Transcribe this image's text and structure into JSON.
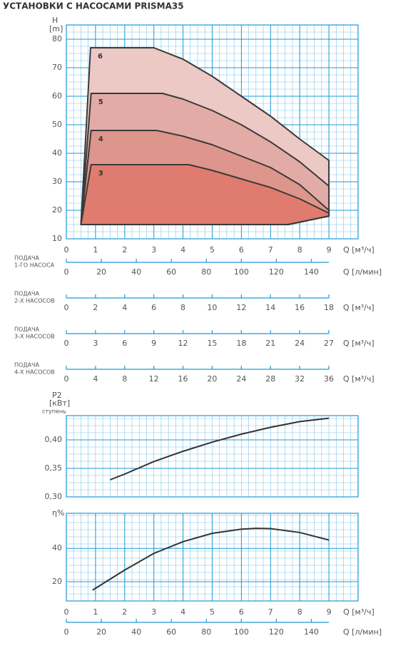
{
  "title": "УСТАНОВКИ С НАСОСАМИ PRISMA35",
  "chart_data": [
    {
      "type": "area",
      "y_label": "H",
      "y_unit": "[m]",
      "x_label": "Q [м³/ч]",
      "xlim": [
        0,
        10
      ],
      "ylim": [
        10,
        85
      ],
      "xticks": [
        0,
        1,
        2,
        3,
        4,
        5,
        6,
        7,
        8,
        9
      ],
      "yticks": [
        10,
        20,
        30,
        40,
        50,
        60,
        70,
        80
      ],
      "series": [
        {
          "name": "6",
          "color": "#ecc9c5",
          "x": [
            0.5,
            0.83,
            3,
            4,
            5,
            6,
            7,
            8,
            9,
            9,
            7.6
          ],
          "values": [
            15,
            77,
            77,
            73,
            67,
            60,
            53,
            45,
            37.5,
            18,
            15
          ]
        },
        {
          "name": "5",
          "color": "#e3aba5",
          "x": [
            0.5,
            0.85,
            3.3,
            4,
            5,
            6,
            7,
            8,
            9,
            9,
            7.6
          ],
          "values": [
            15,
            61,
            61,
            59,
            55,
            50,
            44,
            37,
            28.5,
            18,
            15
          ]
        },
        {
          "name": "4",
          "color": "#de958c",
          "x": [
            0.5,
            0.85,
            3.1,
            4,
            5,
            6,
            7,
            8,
            9,
            9,
            7.6
          ],
          "values": [
            15,
            48,
            48,
            46,
            43,
            39,
            35,
            29,
            20,
            18,
            15
          ]
        },
        {
          "name": "3",
          "color": "#e07c6f",
          "x": [
            0.5,
            0.85,
            4.2,
            5,
            6,
            7,
            8,
            9,
            9,
            7.6
          ],
          "values": [
            15,
            36,
            36,
            34,
            31,
            28,
            24,
            19,
            18,
            15
          ]
        }
      ]
    },
    {
      "type": "scale",
      "label": [
        "ПОДАЧА",
        "1-ГО НАСОСА"
      ],
      "x_label": "Q [л/мин]",
      "xlim": [
        0,
        150
      ],
      "xticks": [
        0,
        20,
        40,
        60,
        80,
        100,
        120,
        140
      ]
    },
    {
      "type": "scale",
      "label": [
        "ПОДАЧА",
        "2-Х НАСОСОВ"
      ],
      "x_label": "Q [м³/ч]",
      "xlim": [
        0,
        18
      ],
      "xticks": [
        0,
        2,
        4,
        6,
        8,
        10,
        12,
        14,
        16,
        18
      ]
    },
    {
      "type": "scale",
      "label": [
        "ПОДАЧА",
        "3-Х НАСОСОВ"
      ],
      "x_label": "Q [м³/ч]",
      "xlim": [
        0,
        27
      ],
      "xticks": [
        0,
        3,
        6,
        9,
        12,
        15,
        18,
        21,
        24,
        27
      ]
    },
    {
      "type": "scale",
      "label": [
        "ПОДАЧА",
        "4-Х НАСОСОВ"
      ],
      "x_label": "Q [м³/ч]",
      "xlim": [
        0,
        36
      ],
      "xticks": [
        0,
        4,
        8,
        12,
        16,
        20,
        24,
        28,
        32,
        36
      ]
    },
    {
      "type": "line",
      "y_label": "P2",
      "y_unit": "[кВт]",
      "y_note": "ступень",
      "xlim": [
        0,
        10
      ],
      "ylim": [
        0.3,
        0.4425
      ],
      "yticks": [
        {
          "value": 0.3,
          "label": "0,30"
        },
        {
          "value": 0.35,
          "label": "0,35"
        },
        {
          "value": 0.4,
          "label": "0,40"
        }
      ],
      "series": [
        {
          "color": "#333333",
          "x": [
            1.5,
            2,
            3,
            4,
            5,
            6,
            7,
            8,
            9
          ],
          "values": [
            0.33,
            0.34,
            0.362,
            0.38,
            0.396,
            0.41,
            0.422,
            0.432,
            0.438
          ]
        }
      ]
    },
    {
      "type": "line",
      "y_label": "η%",
      "x_label": "Q [м³/ч]",
      "xlim": [
        0,
        10
      ],
      "ylim": [
        8.5,
        61
      ],
      "xticks": [
        0,
        1,
        2,
        3,
        4,
        5,
        6,
        7,
        8,
        9
      ],
      "yticks": [
        20,
        40
      ],
      "series": [
        {
          "color": "#333333",
          "x": [
            0.9,
            2,
            3,
            4,
            5,
            6,
            6.5,
            7,
            8,
            9
          ],
          "values": [
            15,
            27,
            37,
            44,
            49,
            51.5,
            52,
            51.8,
            49.5,
            45
          ]
        }
      ]
    },
    {
      "type": "scale",
      "x_label": "Q [л/мин]",
      "xlim": [
        0,
        150
      ],
      "xticks": [
        0,
        20,
        40,
        60,
        80,
        100,
        120,
        140
      ]
    }
  ]
}
